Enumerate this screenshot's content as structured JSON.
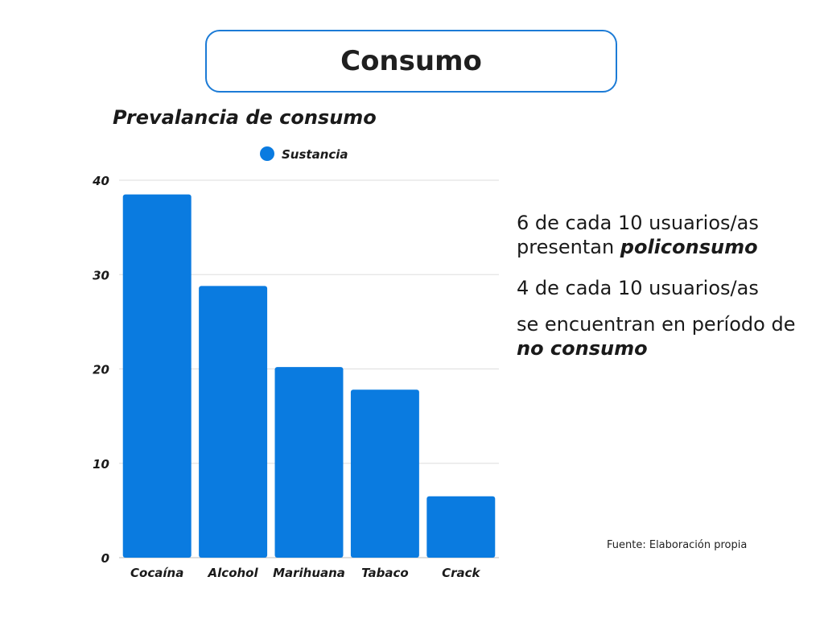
{
  "header": {
    "title": "Consumo"
  },
  "chart_data": {
    "type": "bar",
    "title": "Prevalancia de consumo",
    "xlabel": "",
    "ylabel": "",
    "categories": [
      "Cocaína",
      "Alcohol",
      "Marihuana",
      "Tabaco",
      "Crack"
    ],
    "series": [
      {
        "name": "Sustancia",
        "values": [
          38.5,
          28.8,
          20.2,
          17.8,
          6.5
        ]
      }
    ],
    "ylim": [
      0,
      40
    ],
    "yticks": [
      0,
      10,
      20,
      30,
      40
    ],
    "grid": true,
    "legend": "top-center",
    "color": "#0a7be0"
  },
  "notes": {
    "line1_prefix": "6 de cada 10 usuarios/as presentan ",
    "line1_emph": "policonsumo",
    "line2": "4 de cada 10 usuarios/as",
    "line3_prefix": "se encuentran en período de ",
    "line3_emph": "no consumo"
  },
  "source": "Fuente: Elaboración propia"
}
